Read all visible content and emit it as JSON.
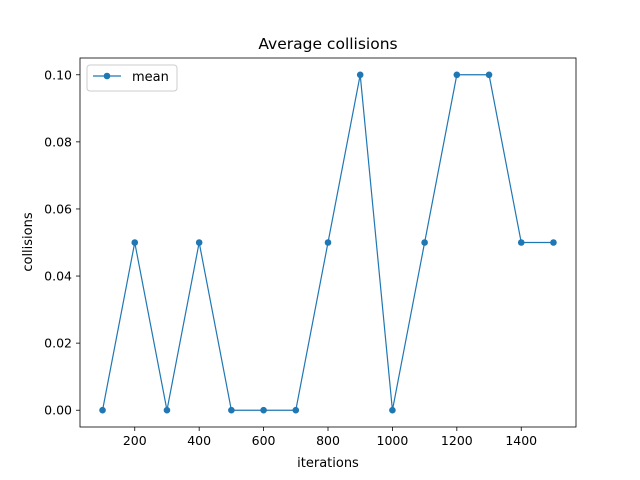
{
  "chart_data": {
    "type": "line",
    "title": "Average collisions",
    "xlabel": "iterations",
    "ylabel": "collisions",
    "xlim": [
      30,
      1570
    ],
    "ylim": [
      -0.005,
      0.105
    ],
    "x_ticks": [
      200,
      400,
      600,
      800,
      1000,
      1200,
      1400
    ],
    "y_ticks": [
      0.0,
      0.02,
      0.04,
      0.06,
      0.08,
      0.1
    ],
    "y_tick_labels": [
      "0.00",
      "0.02",
      "0.04",
      "0.06",
      "0.08",
      "0.10"
    ],
    "x_tick_labels": [
      "200",
      "400",
      "600",
      "800",
      "1000",
      "1200",
      "1400"
    ],
    "grid": false,
    "legend_position": "top-left",
    "series": [
      {
        "name": "mean",
        "color": "#1f77b4",
        "marker": "circle",
        "x": [
          100,
          200,
          300,
          400,
          500,
          600,
          700,
          800,
          900,
          1000,
          1100,
          1200,
          1300,
          1400,
          1500
        ],
        "y": [
          0.0,
          0.05,
          0.0,
          0.05,
          0.0,
          0.0,
          0.0,
          0.05,
          0.1,
          0.0,
          0.05,
          0.1,
          0.1,
          0.05,
          0.05
        ]
      }
    ]
  }
}
